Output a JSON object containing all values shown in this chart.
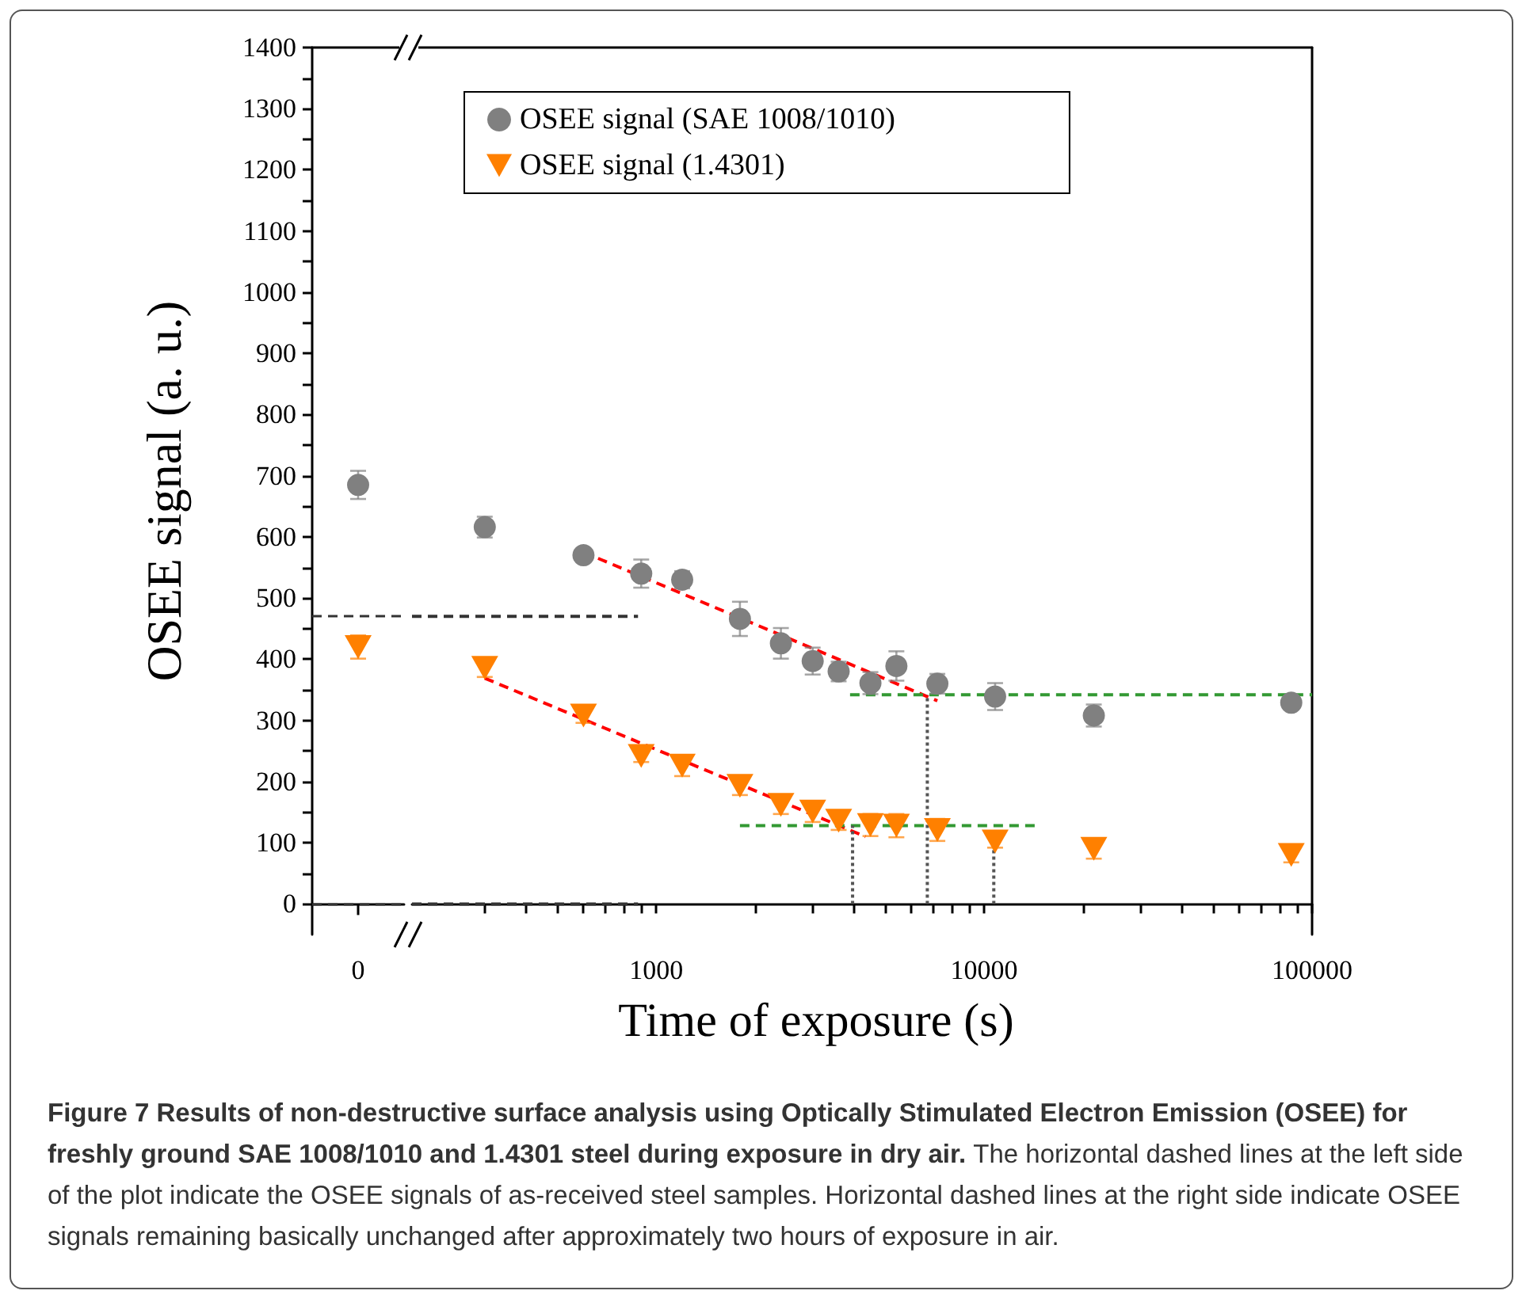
{
  "chart_data": [
    {
      "type": "scatter",
      "categories": [
        "0"
      ],
      "ylabel": "OSEE signal (a. u.)",
      "ylim": [
        -50,
        1400
      ],
      "yticks": [
        0,
        100,
        200,
        300,
        400,
        500,
        600,
        700,
        800,
        900,
        1000,
        1100,
        1200,
        1300,
        1400
      ],
      "series": [
        {
          "color": "#808080",
          "marker": "circle",
          "values": [
            685
          ],
          "errors": [
            23
          ]
        },
        {
          "color": "#ff8000",
          "marker": "triangle",
          "values": [
            420
          ],
          "errors": [
            19
          ]
        }
      ],
      "ref_lines": [
        {
          "axis": "y",
          "value": 470,
          "color": "#333333",
          "line_style": "dashed"
        },
        {
          "axis": "y",
          "value": 0,
          "color": "#333333",
          "line_style": "dashed"
        }
      ]
    },
    {
      "type": "scatter",
      "xlabel": "Time of exposure (s)",
      "log": "x",
      "xlim": [
        180,
        100000
      ],
      "ylim": [
        -50,
        1400
      ],
      "tick_labels": "x",
      "legend": "top",
      "xticks": [
        {
          "value": 300,
          "label": null
        },
        {
          "value": 400,
          "label": null
        },
        {
          "value": 500,
          "label": null
        },
        {
          "value": 600,
          "label": null
        },
        {
          "value": 700,
          "label": null
        },
        {
          "value": 800,
          "label": null
        },
        {
          "value": 900,
          "label": null
        },
        1000,
        {
          "value": 2000,
          "label": null
        },
        {
          "value": 3000,
          "label": null
        },
        {
          "value": 4000,
          "label": null
        },
        {
          "value": 5000,
          "label": null
        },
        {
          "value": 6000,
          "label": null
        },
        {
          "value": 7000,
          "label": null
        },
        {
          "value": 8000,
          "label": null
        },
        {
          "value": 9000,
          "label": null
        },
        10000,
        {
          "value": 20000,
          "label": null
        },
        {
          "value": 30000,
          "label": null
        },
        {
          "value": 40000,
          "label": null
        },
        {
          "value": 50000,
          "label": null
        },
        {
          "value": 60000,
          "label": null
        },
        {
          "value": 70000,
          "label": null
        },
        {
          "value": 80000,
          "label": null
        },
        {
          "value": 90000,
          "label": null
        },
        100000
      ],
      "series": [
        {
          "type": "line",
          "color": "#333333",
          "line_style": "dashed",
          "marker": "none",
          "x": [
            180,
            880
          ],
          "values": [
            470,
            470
          ]
        },
        {
          "type": "line",
          "color": "#333333",
          "line_style": "dashed",
          "marker": "none",
          "x": [
            180,
            880
          ],
          "values": [
            0,
            0
          ]
        },
        {
          "type": "line",
          "color": "#ff0000",
          "line_style": "dashed",
          "marker": "none",
          "x": [
            600,
            7200
          ],
          "values": [
            575,
            332
          ]
        },
        {
          "type": "line",
          "color": "#ff0000",
          "line_style": "dashed",
          "marker": "none",
          "x": [
            300,
            4350
          ],
          "values": [
            369,
            110
          ]
        },
        {
          "type": "line",
          "color": "#339933",
          "line_style": "dashed",
          "marker": "none",
          "x": [
            3900,
            100000
          ],
          "values": [
            342,
            342
          ]
        },
        {
          "type": "line",
          "color": "#339933",
          "line_style": "dashed",
          "marker": "none",
          "x": [
            1800,
            14900
          ],
          "values": [
            128,
            128
          ]
        },
        {
          "type": "line",
          "color": "#555555",
          "line_style": "dotted",
          "marker": "none",
          "x": [
            3970,
            3970
          ],
          "values": [
            0,
            128
          ]
        },
        {
          "type": "line",
          "color": "#555555",
          "line_style": "dotted",
          "marker": "none",
          "x": [
            6710,
            6710
          ],
          "values": [
            0,
            342
          ]
        },
        {
          "type": "line",
          "color": "#555555",
          "line_style": "dotted",
          "marker": "none",
          "x": [
            10700,
            10700
          ],
          "values": [
            0,
            102
          ]
        },
        {
          "name": "OSEE signal (SAE 1008/1010)",
          "color": "#808080",
          "marker": "circle",
          "x": [
            300,
            600,
            900,
            1200,
            1800,
            2400,
            3000,
            3600,
            4500,
            5400,
            7200,
            10800,
            21600,
            86400
          ],
          "values": [
            616,
            570,
            540,
            530,
            466,
            426,
            397,
            380,
            361,
            389,
            360,
            339,
            308,
            329
          ],
          "errors": [
            17,
            8,
            23,
            14,
            28,
            25,
            22,
            16,
            18,
            24,
            16,
            22,
            18,
            10
          ]
        },
        {
          "name": "OSEE signal (1.4301)",
          "color": "#ff8000",
          "marker": "triangle",
          "x": [
            300,
            600,
            900,
            1200,
            1800,
            2400,
            3000,
            3600,
            4500,
            5400,
            7200,
            10800,
            21600,
            86400
          ],
          "values": [
            386,
            308,
            242,
            226,
            193,
            162,
            151,
            136,
            129,
            128,
            121,
            102,
            90,
            80
          ],
          "errors": [
            15,
            12,
            10,
            17,
            15,
            15,
            17,
            15,
            18,
            19,
            18,
            10,
            16,
            12
          ]
        }
      ],
      "annotations": [
        "Figure 7 Results of non-destructive surface analysis using Optically Stimulated Electron Emission (OSEE) for freshly ground SAE 1008/1010 and 1.4301 steel during exposure in dry air.",
        "The horizontal dashed lines at the left side of the plot indicate the OSEE signals of as-received steel samples. Horizontal dashed lines at the right side indicate OSEE signals remaining basically unchanged after approximately two hours of exposure in air."
      ]
    }
  ]
}
